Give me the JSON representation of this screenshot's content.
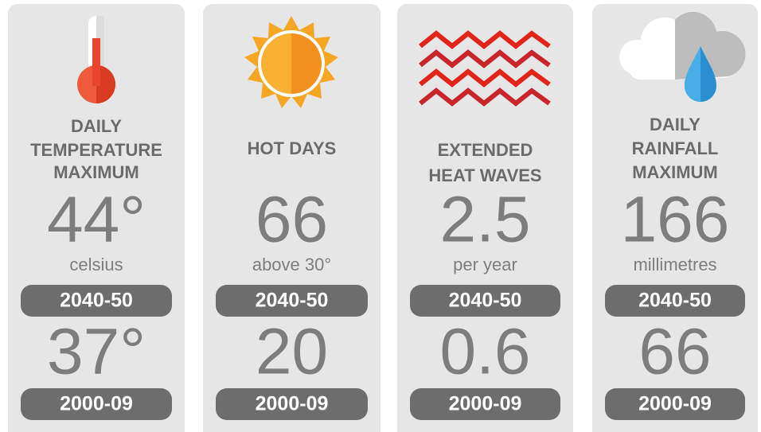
{
  "cards": [
    {
      "title": [
        "DAILY",
        "TEMPERATURE",
        "MAXIMUM"
      ],
      "future": {
        "value": "44°",
        "unit": "celsius",
        "period": "2040-50"
      },
      "past": {
        "value": "37°",
        "period": "2000-09"
      }
    },
    {
      "title": [
        "HOT DAYS"
      ],
      "future": {
        "value": "66",
        "unit": "above 30°",
        "period": "2040-50"
      },
      "past": {
        "value": "20",
        "period": "2000-09"
      }
    },
    {
      "title": [
        "EXTENDED",
        "HEAT WAVES"
      ],
      "future": {
        "value": "2.5",
        "unit": "per year",
        "period": "2040-50"
      },
      "past": {
        "value": "0.6",
        "period": "2000-09"
      }
    },
    {
      "title": [
        "DAILY",
        "RAINFALL",
        "MAXIMUM"
      ],
      "future": {
        "value": "166",
        "unit": "millimetres",
        "period": "2040-50"
      },
      "past": {
        "value": "66",
        "period": "2000-09"
      }
    }
  ]
}
